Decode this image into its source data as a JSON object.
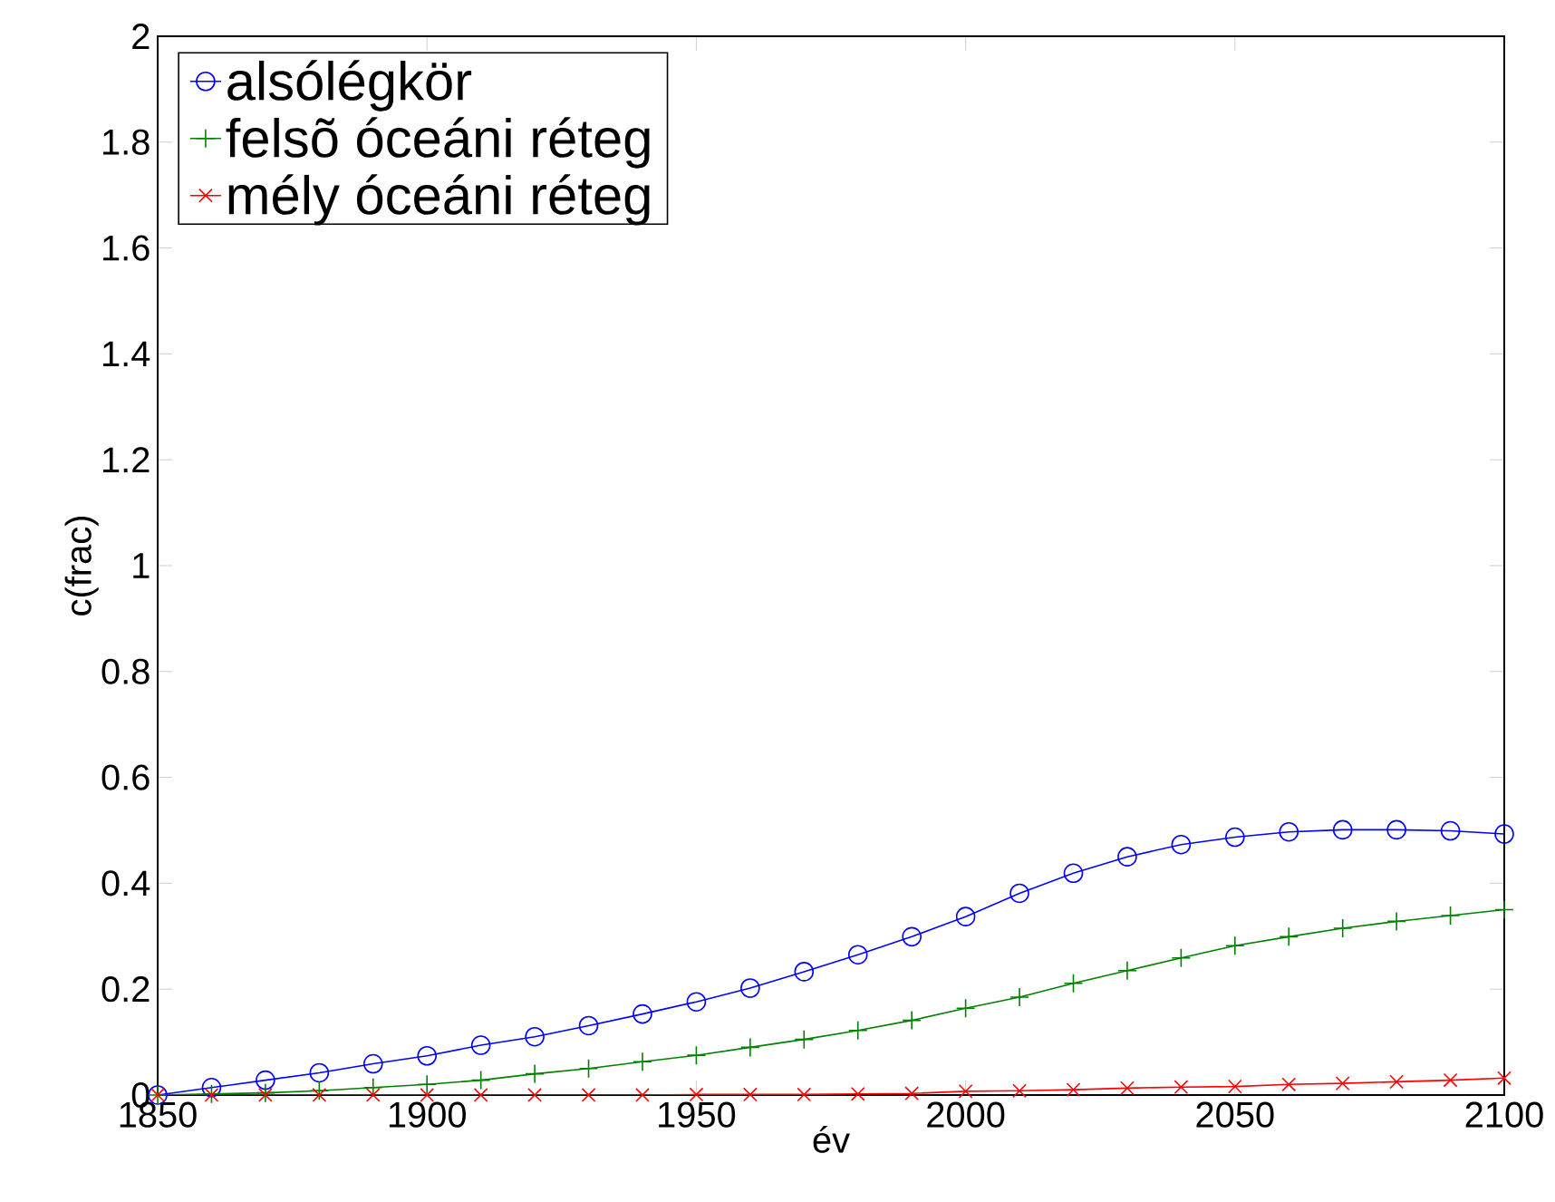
{
  "chart_data": {
    "type": "line",
    "xlabel": "év",
    "ylabel": "c(frac)",
    "x": [
      1850,
      1860,
      1870,
      1880,
      1890,
      1900,
      1910,
      1920,
      1930,
      1940,
      1950,
      1960,
      1970,
      1980,
      1990,
      2000,
      2010,
      2020,
      2030,
      2040,
      2050,
      2060,
      2070,
      2080,
      2090,
      2100
    ],
    "series": [
      {
        "name": "alsólégkör",
        "color": "#0000ff",
        "marker": "circle",
        "values": [
          0,
          0.014,
          0.028,
          0.042,
          0.059,
          0.074,
          0.094,
          0.11,
          0.131,
          0.153,
          0.176,
          0.202,
          0.233,
          0.265,
          0.299,
          0.337,
          0.381,
          0.419,
          0.45,
          0.473,
          0.487,
          0.497,
          0.501,
          0.501,
          0.499,
          0.493
        ]
      },
      {
        "name": "felsõ óceáni réteg",
        "color": "#008000",
        "marker": "plus",
        "values": [
          0,
          0.002,
          0.004,
          0.008,
          0.014,
          0.02,
          0.028,
          0.04,
          0.05,
          0.063,
          0.075,
          0.09,
          0.105,
          0.122,
          0.141,
          0.164,
          0.185,
          0.211,
          0.235,
          0.259,
          0.282,
          0.299,
          0.315,
          0.328,
          0.339,
          0.35
        ]
      },
      {
        "name": "mély óceáni réteg",
        "color": "#ff0000",
        "marker": "cross",
        "values": [
          0,
          0,
          0,
          0,
          0,
          0,
          0,
          0,
          0,
          0,
          0.001,
          0.001,
          0.001,
          0.002,
          0.003,
          0.007,
          0.008,
          0.01,
          0.013,
          0.015,
          0.016,
          0.02,
          0.022,
          0.025,
          0.028,
          0.032
        ]
      }
    ],
    "xlim": [
      1850,
      2100
    ],
    "xticks": [
      1850,
      1900,
      1950,
      2000,
      2050,
      2100
    ],
    "ylim": [
      0,
      2
    ],
    "yticks": [
      0,
      0.2,
      0.4,
      0.6,
      0.8,
      1,
      1.2,
      1.4,
      1.6,
      1.8,
      2
    ],
    "grid": false,
    "legend": "top left",
    "line_style": "solid"
  }
}
